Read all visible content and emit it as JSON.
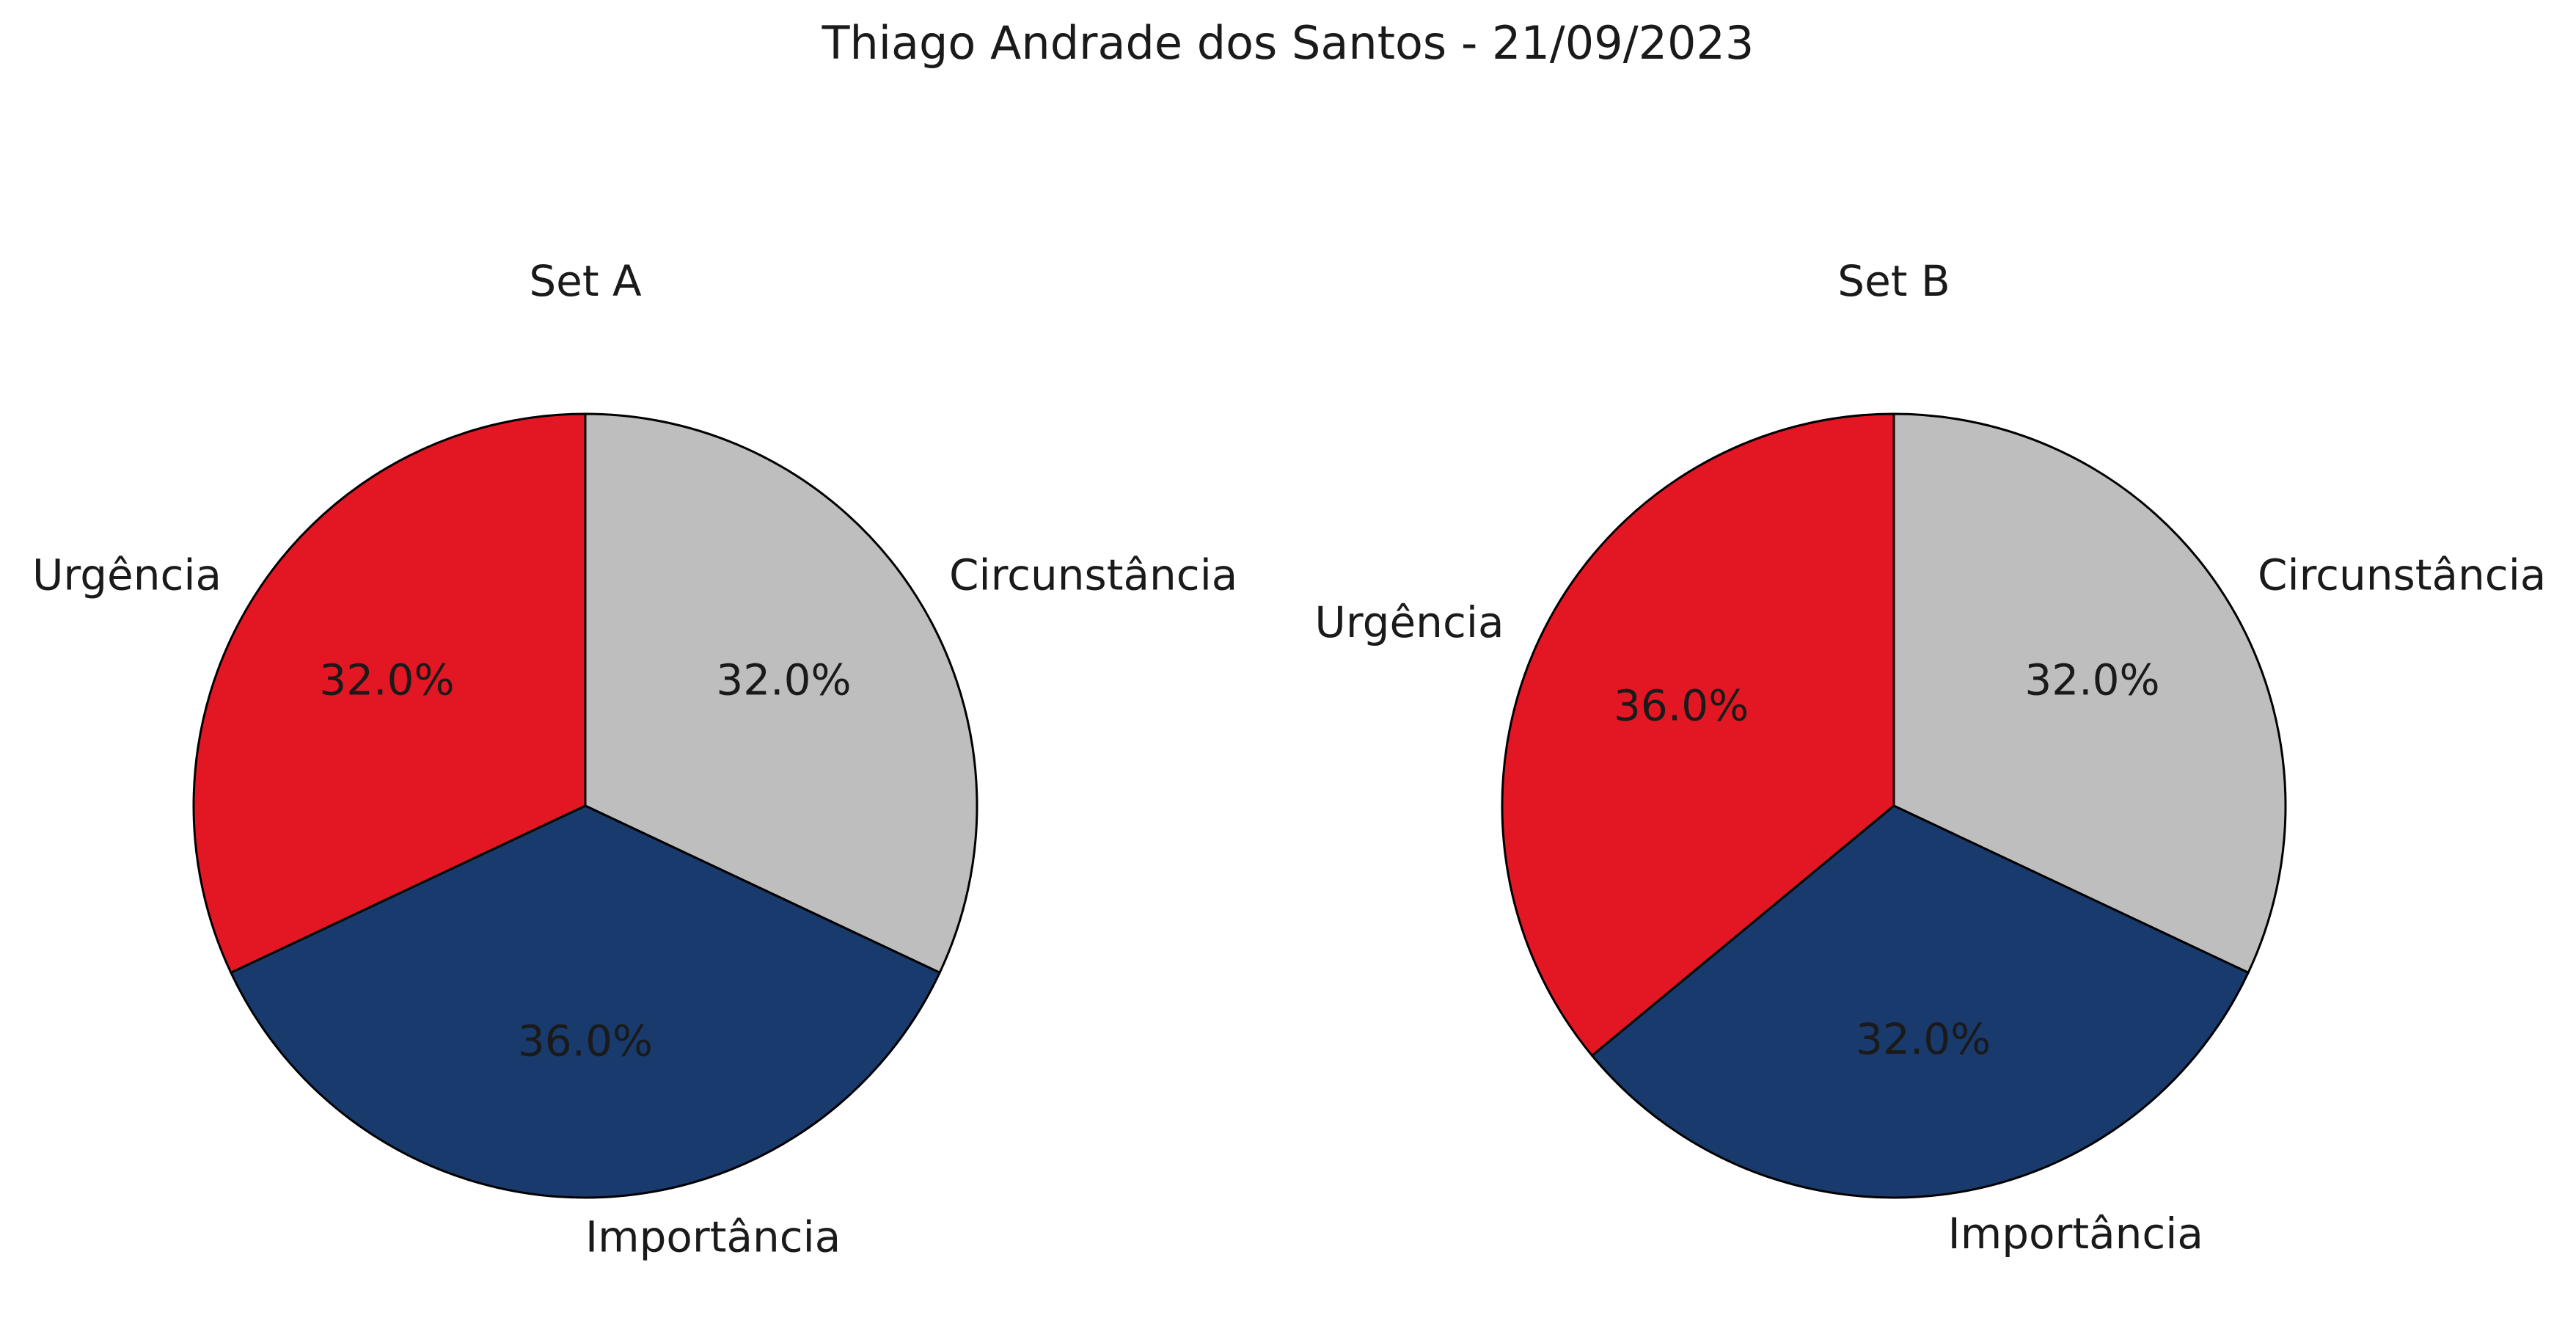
{
  "suptitle": "Thiago Andrade dos Santos - 21/09/2023",
  "colors": {
    "Circunstância": "#bdbebd",
    "Importância": "#193a6d",
    "Urgência": "#e31724",
    "edge": "#000000"
  },
  "chart_data": [
    {
      "type": "pie",
      "title": "Set A",
      "start_angle_deg": 90,
      "direction": "clockwise",
      "slices": [
        {
          "label": "Circunstância",
          "value": 32.0,
          "pct_label": "32.0%",
          "color": "#bdbebd"
        },
        {
          "label": "Importância",
          "value": 36.0,
          "pct_label": "36.0%",
          "color": "#193a6d"
        },
        {
          "label": "Urgência",
          "value": 32.0,
          "pct_label": "32.0%",
          "color": "#e31724"
        }
      ]
    },
    {
      "type": "pie",
      "title": "Set B",
      "start_angle_deg": 90,
      "direction": "clockwise",
      "slices": [
        {
          "label": "Circunstância",
          "value": 32.0,
          "pct_label": "32.0%",
          "color": "#bdbebd"
        },
        {
          "label": "Importância",
          "value": 32.0,
          "pct_label": "32.0%",
          "color": "#193a6d"
        },
        {
          "label": "Urgência",
          "value": 36.0,
          "pct_label": "36.0%",
          "color": "#e31724"
        }
      ]
    }
  ]
}
